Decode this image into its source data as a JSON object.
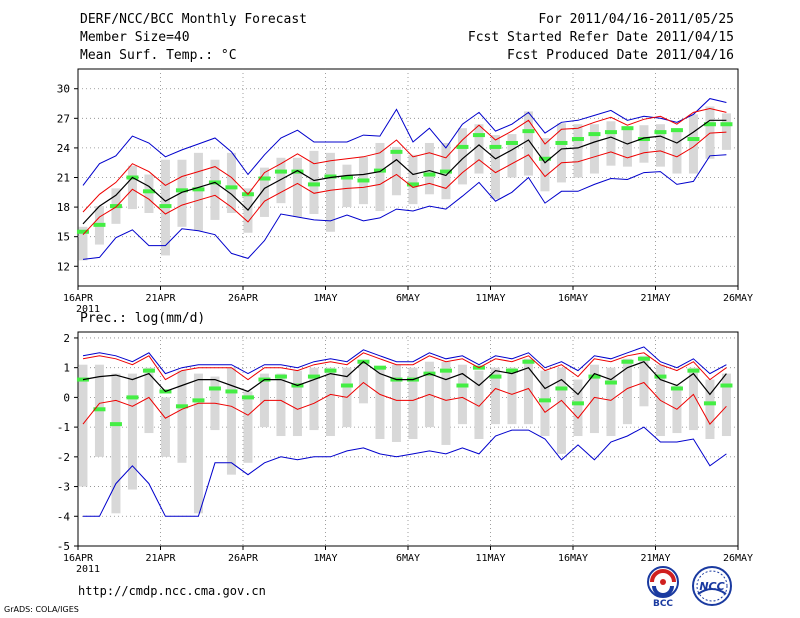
{
  "header": {
    "title": "DERF/NCC/BCC Monthly Forecast",
    "member_size": "Member Size=40",
    "variable": "Mean Surf. Temp.: °C",
    "forecast_period": "For 2011/04/16-2011/05/25",
    "started_date": "Fcst Started Refer Date 2011/04/15",
    "produced_date": "Fcst Produced Date 2011/04/16"
  },
  "footer": {
    "url": "http://cmdp.ncc.cma.gov.cn",
    "credit": "GrADS: COLA/IGES",
    "logo1_text": "BCC",
    "logo2_text": "NCC"
  },
  "colors": {
    "mean": "#000000",
    "spread": "#ee0000",
    "extreme": "#0000cc",
    "box": "#d8d8d8",
    "median": "#44ee44",
    "grid": "#888888"
  },
  "chart_data": [
    {
      "type": "line",
      "title": "Mean Surf. Temp.: °C",
      "ylabel": "°C",
      "ylim": [
        10,
        32
      ],
      "yticks": [
        12,
        15,
        18,
        21,
        24,
        27,
        30
      ],
      "xlim": [
        0,
        40
      ],
      "xticks": [
        {
          "x": 0,
          "label": "16APR"
        },
        {
          "x": 5,
          "label": "21APR"
        },
        {
          "x": 10,
          "label": "26APR"
        },
        {
          "x": 15,
          "label": "1MAY"
        },
        {
          "x": 20,
          "label": "6MAY"
        },
        {
          "x": 25,
          "label": "11MAY"
        },
        {
          "x": 30,
          "label": "16MAY"
        },
        {
          "x": 35,
          "label": "21MAY"
        },
        {
          "x": 40,
          "label": "26MAY"
        }
      ],
      "year_label": "2011",
      "series": {
        "mean": [
          16.3,
          18.1,
          19.2,
          21.0,
          20.1,
          18.6,
          19.5,
          20.0,
          20.5,
          19.3,
          17.7,
          19.9,
          20.8,
          21.7,
          20.7,
          21.0,
          21.2,
          21.3,
          21.6,
          22.8,
          21.3,
          21.7,
          21.2,
          22.9,
          24.3,
          22.9,
          23.8,
          24.8,
          22.5,
          23.9,
          24.0,
          24.6,
          25.1,
          24.4,
          25.0,
          25.2,
          24.5,
          25.6,
          26.8,
          26.8
        ],
        "upper": [
          17.5,
          19.3,
          20.5,
          22.4,
          21.6,
          20.2,
          21.1,
          21.6,
          22.1,
          21.0,
          19.3,
          21.5,
          22.4,
          23.4,
          22.4,
          22.7,
          22.9,
          23.1,
          23.5,
          24.8,
          23.1,
          23.5,
          23.0,
          24.8,
          26.3,
          24.8,
          25.7,
          26.8,
          24.4,
          25.9,
          26.0,
          26.6,
          27.1,
          26.3,
          26.9,
          27.2,
          26.4,
          27.6,
          28.0,
          27.6
        ],
        "lower": [
          15.2,
          17.0,
          18.0,
          19.8,
          18.8,
          17.3,
          18.2,
          18.7,
          19.2,
          18.0,
          16.5,
          18.6,
          19.5,
          20.4,
          19.4,
          19.7,
          19.9,
          20.0,
          20.3,
          21.3,
          20.0,
          20.4,
          19.9,
          21.5,
          22.8,
          21.5,
          22.4,
          23.3,
          21.1,
          22.5,
          22.6,
          23.1,
          23.6,
          23.0,
          23.5,
          23.7,
          23.1,
          24.1,
          25.5,
          25.6
        ],
        "max": [
          20.2,
          22.4,
          23.2,
          25.2,
          24.5,
          23.1,
          23.8,
          24.4,
          25.0,
          23.6,
          21.3,
          23.3,
          25.0,
          25.8,
          24.6,
          24.6,
          24.6,
          25.3,
          25.2,
          27.9,
          24.6,
          26.0,
          24.0,
          26.4,
          27.6,
          25.7,
          26.4,
          27.6,
          25.5,
          26.6,
          26.8,
          27.3,
          27.8,
          26.8,
          27.2,
          27.0,
          26.6,
          27.4,
          29.0,
          28.6
        ],
        "min": [
          12.7,
          12.9,
          14.9,
          15.7,
          14.1,
          14.1,
          15.8,
          15.6,
          15.2,
          13.3,
          12.8,
          14.6,
          17.3,
          17.0,
          16.7,
          16.6,
          17.2,
          16.6,
          16.9,
          17.8,
          17.6,
          18.1,
          17.8,
          19.1,
          20.5,
          18.6,
          19.5,
          21.0,
          18.4,
          19.6,
          19.6,
          20.3,
          20.9,
          20.8,
          21.5,
          21.6,
          20.3,
          20.6,
          23.2,
          23.3
        ],
        "box_low": [
          12.6,
          14.2,
          16.3,
          17.8,
          17.4,
          13.1,
          16.0,
          15.6,
          16.7,
          17.4,
          15.4,
          17.0,
          18.4,
          17.0,
          17.3,
          15.5,
          18.0,
          18.3,
          17.6,
          19.2,
          18.3,
          19.3,
          18.8,
          20.3,
          21.4,
          18.8,
          21.0,
          21.2,
          19.6,
          20.5,
          21.0,
          21.4,
          22.2,
          22.1,
          22.5,
          22.1,
          21.4,
          21.4,
          22.9,
          23.8
        ],
        "box_high": [
          16.0,
          18.1,
          19.9,
          22.2,
          21.3,
          22.8,
          22.8,
          23.5,
          22.8,
          23.5,
          19.9,
          22.0,
          23.0,
          23.0,
          23.7,
          23.5,
          22.3,
          23.1,
          24.5,
          24.1,
          23.3,
          24.5,
          24.5,
          26.0,
          26.4,
          25.3,
          25.4,
          27.7,
          25.0,
          26.5,
          26.4,
          26.4,
          26.7,
          26.2,
          26.3,
          26.4,
          26.0,
          27.4,
          28.2,
          27.5
        ],
        "median": [
          15.5,
          16.2,
          18.1,
          21.0,
          19.6,
          18.1,
          19.7,
          19.8,
          20.5,
          20.0,
          19.3,
          20.9,
          21.6,
          21.6,
          20.3,
          21.1,
          21.0,
          20.7,
          21.7,
          23.6,
          20.3,
          21.3,
          21.6,
          24.1,
          25.3,
          24.1,
          24.5,
          25.7,
          22.9,
          24.5,
          24.9,
          25.4,
          25.6,
          26.0,
          24.9,
          25.6,
          25.8,
          24.9,
          26.4,
          26.4
        ]
      }
    },
    {
      "type": "line",
      "title": "Prec.: log(mm/d)",
      "ylabel": "log(mm/d)",
      "ylim": [
        -5,
        2.2
      ],
      "yticks": [
        -5,
        -4,
        -3,
        -2,
        -1,
        0,
        1,
        2
      ],
      "xlim": [
        0,
        40
      ],
      "xticks": [
        {
          "x": 0,
          "label": "16APR"
        },
        {
          "x": 5,
          "label": "21APR"
        },
        {
          "x": 10,
          "label": "26APR"
        },
        {
          "x": 15,
          "label": "1MAY"
        },
        {
          "x": 20,
          "label": "6MAY"
        },
        {
          "x": 25,
          "label": "11MAY"
        },
        {
          "x": 30,
          "label": "16MAY"
        },
        {
          "x": 35,
          "label": "21MAY"
        },
        {
          "x": 40,
          "label": "26MAY"
        }
      ],
      "year_label": "2011",
      "series": {
        "mean": [
          0.6,
          0.7,
          0.75,
          0.6,
          0.8,
          0.2,
          0.4,
          0.6,
          0.6,
          0.4,
          0.2,
          0.6,
          0.6,
          0.4,
          0.6,
          0.8,
          0.7,
          1.2,
          0.8,
          0.6,
          0.6,
          0.8,
          0.6,
          0.8,
          0.4,
          0.9,
          0.8,
          1.0,
          0.3,
          0.6,
          0.1,
          0.8,
          0.6,
          1.0,
          1.2,
          0.6,
          0.4,
          0.8,
          0.1,
          0.8
        ],
        "upper": [
          1.3,
          1.4,
          1.3,
          1.1,
          1.4,
          0.6,
          0.9,
          1.0,
          1.0,
          1.0,
          0.6,
          1.0,
          1.0,
          0.9,
          1.1,
          1.2,
          1.1,
          1.5,
          1.3,
          1.1,
          1.1,
          1.4,
          1.2,
          1.3,
          1.0,
          1.3,
          1.2,
          1.4,
          0.9,
          1.1,
          0.7,
          1.3,
          1.2,
          1.4,
          1.5,
          1.1,
          0.9,
          1.2,
          0.6,
          1.0
        ],
        "lower": [
          -0.9,
          -0.2,
          -0.1,
          -0.3,
          0.0,
          -0.7,
          -0.4,
          -0.2,
          -0.2,
          -0.3,
          -0.6,
          -0.1,
          -0.1,
          -0.4,
          -0.2,
          0.1,
          0.0,
          0.5,
          0.1,
          -0.1,
          -0.1,
          0.1,
          -0.1,
          0.0,
          -0.3,
          0.3,
          0.1,
          0.3,
          -0.5,
          -0.1,
          -0.7,
          0.0,
          -0.1,
          0.3,
          0.5,
          -0.1,
          -0.4,
          0.1,
          -0.9,
          -0.3
        ],
        "max": [
          1.4,
          1.5,
          1.4,
          1.2,
          1.5,
          0.8,
          1.0,
          1.1,
          1.1,
          1.1,
          0.8,
          1.1,
          1.1,
          1.0,
          1.2,
          1.3,
          1.2,
          1.6,
          1.4,
          1.2,
          1.2,
          1.5,
          1.3,
          1.4,
          1.1,
          1.4,
          1.3,
          1.5,
          1.0,
          1.2,
          0.9,
          1.4,
          1.3,
          1.5,
          1.7,
          1.2,
          1.0,
          1.3,
          0.8,
          1.1
        ],
        "min": [
          -4.0,
          -4.0,
          -2.9,
          -2.3,
          -2.9,
          -4.0,
          -4.0,
          -4.0,
          -2.2,
          -2.2,
          -2.6,
          -2.2,
          -2.0,
          -2.1,
          -2.0,
          -2.0,
          -1.8,
          -1.7,
          -1.9,
          -2.0,
          -1.9,
          -1.8,
          -1.9,
          -1.7,
          -1.9,
          -1.3,
          -1.1,
          -1.1,
          -1.4,
          -2.1,
          -1.6,
          -2.1,
          -1.5,
          -1.3,
          -1.0,
          -1.5,
          -1.5,
          -1.4,
          -2.3,
          -1.9
        ],
        "box_low": [
          -3.0,
          -2.0,
          -3.9,
          -3.1,
          -1.2,
          -2.0,
          -2.2,
          -3.9,
          -1.1,
          -2.6,
          -2.2,
          -1.0,
          -1.3,
          -1.3,
          -1.1,
          -1.3,
          -1.0,
          -0.2,
          -1.4,
          -1.5,
          -1.4,
          -1.0,
          -1.6,
          -0.9,
          -1.4,
          -0.9,
          -0.9,
          -0.9,
          -1.3,
          -1.9,
          -1.3,
          -1.2,
          -1.3,
          -0.9,
          -0.3,
          -1.3,
          -1.2,
          -1.1,
          -1.4,
          -1.3
        ],
        "box_high": [
          1.1,
          1.1,
          0.8,
          0.8,
          1.0,
          0.0,
          0.9,
          0.8,
          0.7,
          1.0,
          0.2,
          0.8,
          0.8,
          0.9,
          1.0,
          1.0,
          1.0,
          1.2,
          1.0,
          1.1,
          1.0,
          1.2,
          1.2,
          1.1,
          0.9,
          1.0,
          1.0,
          1.3,
          0.9,
          1.0,
          0.6,
          1.1,
          1.0,
          1.3,
          1.4,
          1.1,
          0.4,
          1.0,
          0.6,
          0.8
        ],
        "median": [
          0.6,
          -0.4,
          -0.9,
          0.0,
          0.9,
          0.2,
          -0.3,
          -0.1,
          0.3,
          0.2,
          0.0,
          0.6,
          0.7,
          0.4,
          0.7,
          0.9,
          0.4,
          1.2,
          1.0,
          0.6,
          0.6,
          0.8,
          0.9,
          0.4,
          1.0,
          0.7,
          0.9,
          1.2,
          -0.1,
          0.3,
          -0.2,
          0.7,
          0.5,
          1.2,
          1.3,
          0.7,
          0.3,
          0.9,
          -0.2,
          0.4
        ]
      }
    }
  ]
}
